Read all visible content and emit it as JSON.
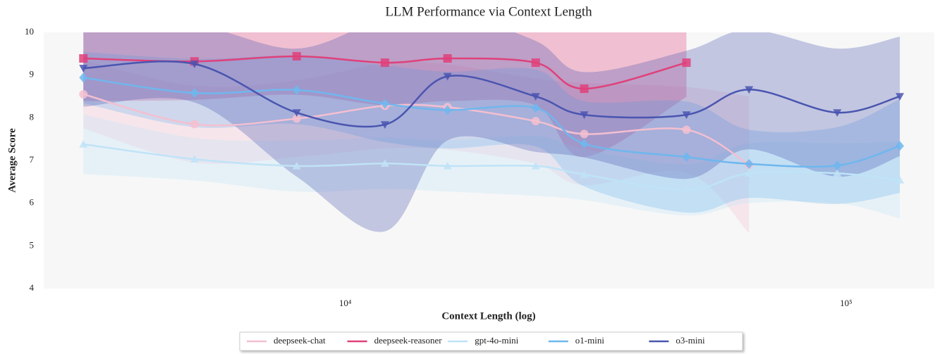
{
  "chart_data": {
    "type": "line",
    "title": "LLM Performance via Context Length",
    "x_label": "Context Length (log)",
    "y_label": "Average Score",
    "x": [
      3000,
      5000,
      8000,
      12000,
      16000,
      24000,
      30000,
      48000,
      64000,
      96000,
      128000
    ],
    "xscale": "log",
    "xlim": [
      2500,
      150000
    ],
    "xticks": [
      {
        "value": 10000,
        "label": "10⁴"
      },
      {
        "value": 100000,
        "label": "10⁵"
      }
    ],
    "ylim": [
      4,
      10
    ],
    "yticks": [
      4,
      5,
      6,
      7,
      8,
      9,
      10
    ],
    "legend": "bottom",
    "series": [
      {
        "name": "deepseek-chat",
        "color": "#f4bfd0",
        "marker": "circle",
        "values": [
          8.55,
          7.85,
          7.98,
          8.28,
          8.25,
          7.92,
          7.62,
          7.72,
          6.9,
          null,
          null
        ],
        "error": [
          0.8,
          0.9,
          0.9,
          1.0,
          1.0,
          1.0,
          1.2,
          1.0,
          1.6,
          null,
          null
        ]
      },
      {
        "name": "deepseek-reasoner",
        "color": "#e0407a",
        "marker": "square",
        "values": [
          9.39,
          9.32,
          9.44,
          9.29,
          9.39,
          9.29,
          8.68,
          9.29,
          null,
          null,
          null
        ],
        "error": [
          1.0,
          0.9,
          0.9,
          1.0,
          1.0,
          1.0,
          1.6,
          0.8,
          null,
          null,
          null
        ]
      },
      {
        "name": "gpt-4o-mini",
        "color": "#bfe3f7",
        "marker": "triangle-up",
        "values": [
          7.38,
          7.03,
          6.87,
          6.93,
          6.87,
          6.87,
          6.67,
          6.31,
          6.7,
          6.7,
          6.54
        ],
        "error": [
          0.7,
          0.5,
          0.6,
          0.6,
          0.6,
          0.7,
          0.6,
          0.6,
          0.7,
          0.7,
          0.9
        ]
      },
      {
        "name": "o1-mini",
        "color": "#6fb7ee",
        "marker": "diamond",
        "values": [
          8.94,
          8.58,
          8.65,
          8.33,
          8.18,
          8.23,
          7.39,
          7.08,
          6.92,
          6.88,
          7.34
        ],
        "error": [
          0.6,
          0.8,
          0.8,
          0.9,
          0.9,
          0.9,
          1.0,
          1.3,
          0.8,
          0.9,
          1.1
        ]
      },
      {
        "name": "o3-mini",
        "color": "#4a55b0",
        "marker": "triangle-down",
        "values": [
          9.16,
          9.26,
          8.12,
          7.84,
          8.97,
          8.5,
          8.07,
          8.07,
          8.66,
          8.12,
          8.5
        ],
        "error": [
          0.9,
          0.9,
          1.5,
          2.5,
          1.5,
          1.3,
          1.0,
          1.5,
          1.4,
          1.5,
          1.4
        ]
      }
    ]
  }
}
